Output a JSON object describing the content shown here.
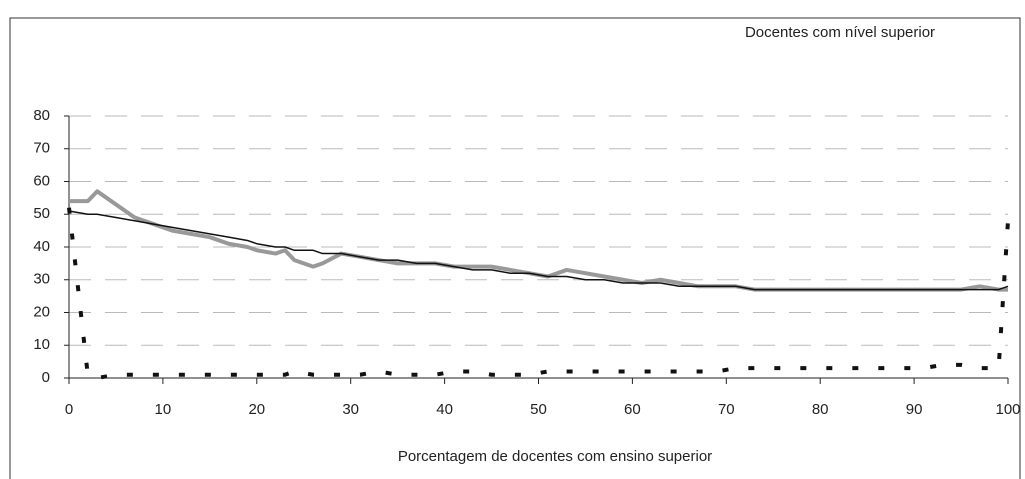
{
  "chart_data": {
    "type": "line",
    "annotation": "Docentes com nível superior",
    "x_label": "Porcentagem de docentes com ensino superior",
    "x": [
      0,
      2,
      3,
      5,
      7,
      9,
      11,
      13,
      15,
      17,
      19,
      20,
      22,
      23,
      24,
      26,
      27,
      29,
      31,
      33,
      35,
      37,
      39,
      41,
      43,
      45,
      47,
      49,
      51,
      53,
      55,
      57,
      59,
      61,
      63,
      65,
      67,
      69,
      71,
      73,
      75,
      77,
      79,
      81,
      83,
      85,
      87,
      89,
      91,
      93,
      95,
      97,
      99,
      100
    ],
    "series": [
      {
        "color": "#999999",
        "style": "thick",
        "values": [
          54,
          54,
          57,
          53,
          49,
          47,
          45,
          44,
          43,
          41,
          40,
          39,
          38,
          39,
          36,
          34,
          35,
          38,
          37,
          36,
          35,
          35,
          35,
          34,
          34,
          34,
          33,
          32,
          31,
          33,
          32,
          31,
          30,
          29,
          30,
          29,
          28,
          28,
          28,
          27,
          27,
          27,
          27,
          27,
          27,
          27,
          27,
          27,
          27,
          27,
          27,
          28,
          27,
          27
        ]
      },
      {
        "color": "#111111",
        "style": "thin",
        "values": [
          51,
          50,
          50,
          49,
          48,
          47,
          46,
          45,
          44,
          43,
          42,
          41,
          40,
          40,
          39,
          39,
          38,
          38,
          37,
          36,
          36,
          35,
          35,
          34,
          33,
          33,
          32,
          32,
          31,
          31,
          30,
          30,
          29,
          29,
          29,
          28,
          28,
          28,
          28,
          27,
          27,
          27,
          27,
          27,
          27,
          27,
          27,
          27,
          27,
          27,
          27,
          27,
          27,
          28
        ]
      },
      {
        "color": "#111111",
        "style": "dashed",
        "values": [
          52,
          1,
          0,
          1,
          1,
          1,
          1,
          1,
          1,
          1,
          1,
          1,
          1,
          1,
          2,
          1,
          1,
          1,
          1,
          2,
          1,
          1,
          1,
          2,
          2,
          1,
          1,
          1,
          2,
          2,
          2,
          2,
          2,
          2,
          2,
          2,
          2,
          2,
          3,
          3,
          3,
          3,
          3,
          3,
          3,
          3,
          3,
          3,
          3,
          4,
          4,
          3,
          3,
          48
        ]
      }
    ],
    "xlim": [
      0,
      100
    ],
    "xticks": [
      0,
      10,
      20,
      30,
      40,
      50,
      60,
      70,
      80,
      90,
      100
    ],
    "ylim": [
      0,
      80
    ],
    "yticks": [
      0,
      10,
      20,
      30,
      40,
      50,
      60,
      70,
      80
    ],
    "grid": true
  }
}
